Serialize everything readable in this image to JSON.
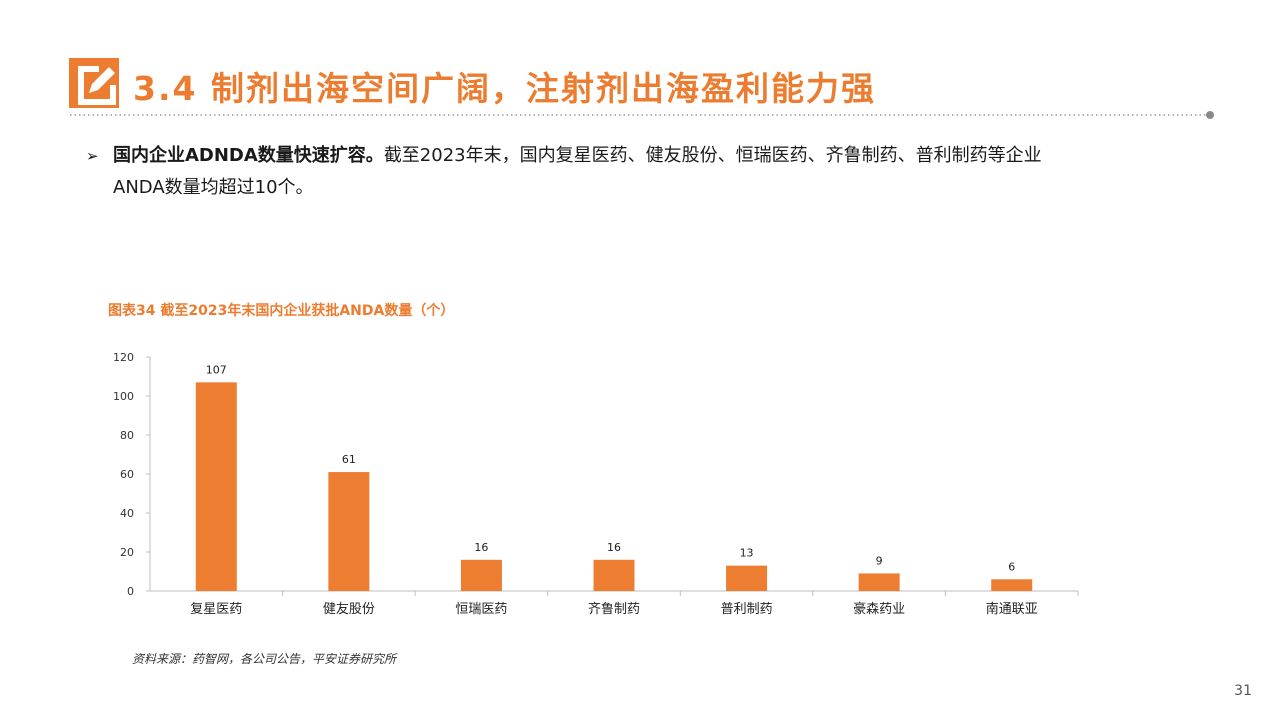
{
  "header": {
    "title": "3.4 制剂出海空间广阔，注射剂出海盈利能力强",
    "accent_color": "#ec7c2f",
    "icon": "pencil-edit-icon"
  },
  "bullet": {
    "arrow": "➢",
    "lead": "国内企业ADNDA数量快速扩容。",
    "text_line1": "截至2023年末，国内复星医药、健友股份、恒瑞医药、齐鲁制药、普利制药等企业",
    "text_line2": "ANDA数量均超过10个。"
  },
  "figure": {
    "caption": "图表34 截至2023年末国内企业获批ANDA数量（个）",
    "source": "资料来源：药智网，各公司公告，平安证券研究所"
  },
  "chart_data": {
    "type": "bar",
    "title": "",
    "xlabel": "",
    "ylabel": "",
    "categories": [
      "复星医药",
      "健友股份",
      "恒瑞医药",
      "齐鲁制药",
      "普利制药",
      "豪森药业",
      "南通联亚"
    ],
    "values": [
      107,
      61,
      16,
      16,
      13,
      9,
      6
    ],
    "ylim": [
      0,
      120
    ],
    "yticks": [
      0,
      20,
      40,
      60,
      80,
      100,
      120
    ],
    "bar_color": "#ed7d31",
    "grid": false,
    "data_labels": true
  },
  "page_number": "31"
}
